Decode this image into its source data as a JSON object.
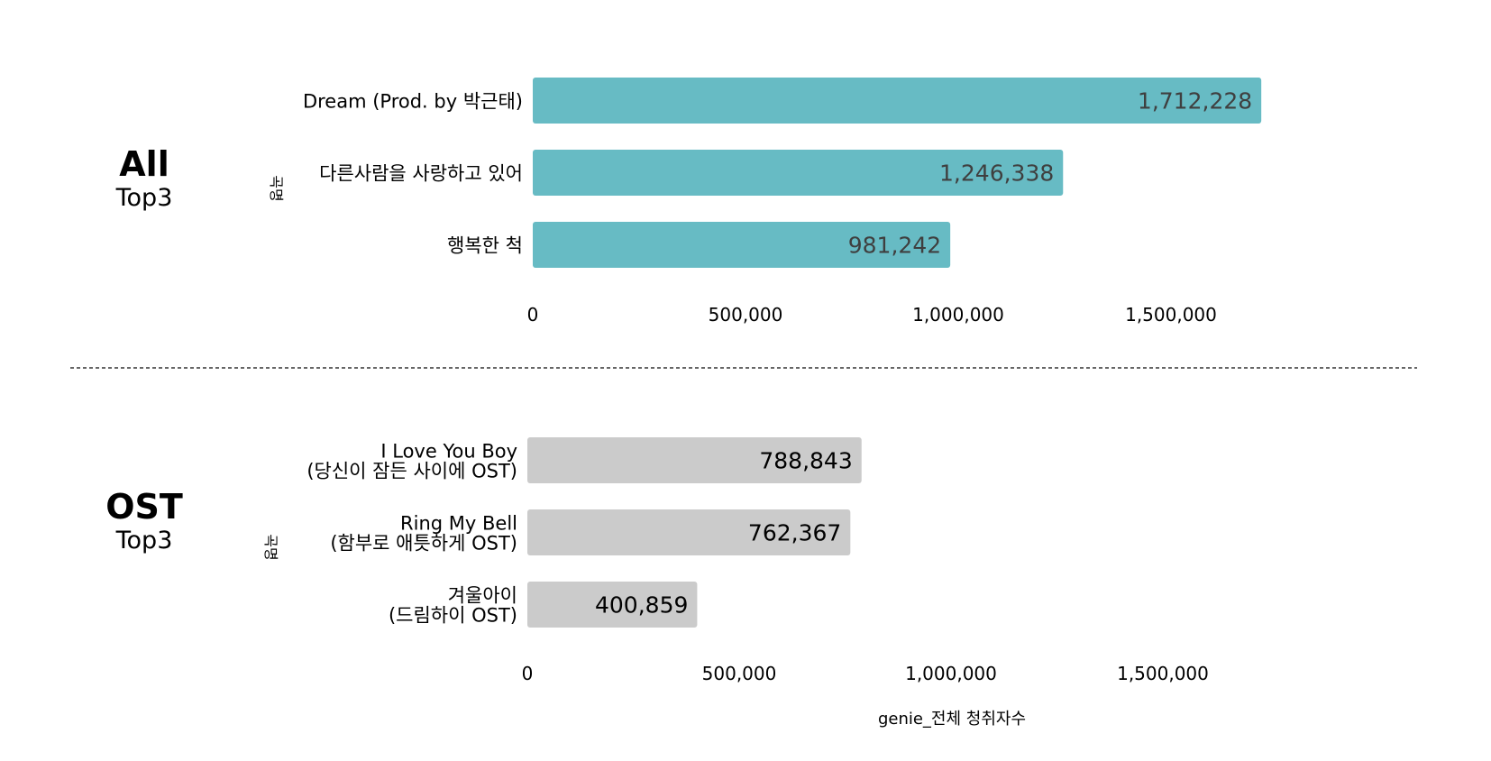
{
  "colors": {
    "all_bar": "#67bbc4",
    "ost_bar": "#cbcbcb",
    "all_value_label": "#3f3f3f",
    "ost_value_label": "#000000",
    "separator": "#333333"
  },
  "panels": {
    "all": {
      "title": "All",
      "subtitle": "Top3"
    },
    "ost": {
      "title": "OST",
      "subtitle": "Top3"
    }
  },
  "chart_data": [
    {
      "type": "bar",
      "orientation": "horizontal",
      "title": "All Top3",
      "ylabel": "곡명",
      "xlabel": "",
      "categories": [
        [
          "Dream (Prod. by 박근태)"
        ],
        [
          "다른사람을 사랑하고 있어"
        ],
        [
          "행복한 척"
        ]
      ],
      "values": [
        1712228,
        1246338,
        981242
      ],
      "value_labels": [
        "1,712,228",
        "1,246,338",
        "981,242"
      ],
      "xlim": [
        0,
        1850000
      ],
      "xticks": [
        0,
        500000,
        1000000,
        1500000
      ],
      "xtick_labels": [
        "0",
        "500,000",
        "1,000,000",
        "1,500,000"
      ],
      "grid": false,
      "color": "#67bbc4"
    },
    {
      "type": "bar",
      "orientation": "horizontal",
      "title": "OST Top3",
      "ylabel": "곡명",
      "xlabel": "genie_전체 청취자수",
      "categories": [
        [
          "I Love You Boy",
          "(당신이 잠든 사이에 OST)"
        ],
        [
          "Ring My Bell",
          "(함부로 애틋하게 OST)"
        ],
        [
          "겨울아이",
          "(드림하이 OST)"
        ]
      ],
      "values": [
        788843,
        762367,
        400859
      ],
      "value_labels": [
        "788,843",
        "762,367",
        "400,859"
      ],
      "xlim": [
        0,
        1850000
      ],
      "xticks": [
        0,
        500000,
        1000000,
        1500000
      ],
      "xtick_labels": [
        "0",
        "500,000",
        "1,000,000",
        "1,500,000"
      ],
      "grid": false,
      "color": "#cbcbcb"
    }
  ]
}
